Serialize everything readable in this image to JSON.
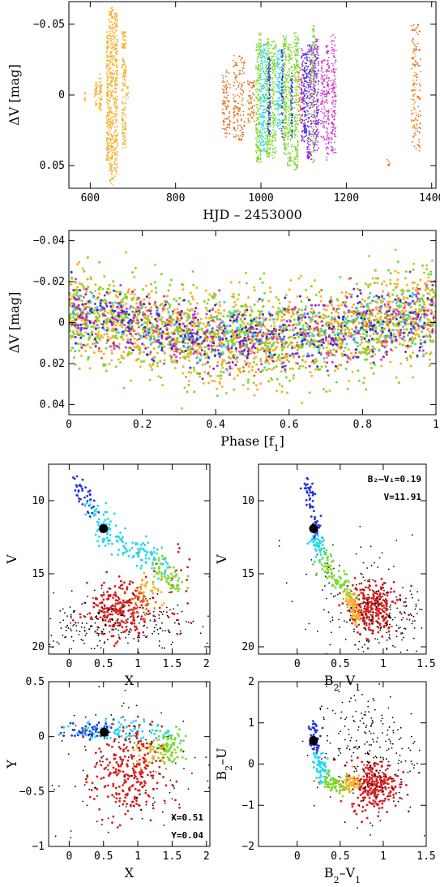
{
  "palette": {
    "orange": "#f4b12a",
    "deep_orange": "#df6b15",
    "green": "#7bd92d",
    "cyan": "#24d7f1",
    "blue": "#2233d8",
    "purple": "#8b28d7",
    "magenta": "#cf36cf",
    "red": "#d81d1d",
    "black": "#000000"
  },
  "chart_data": [
    {
      "type": "scatter",
      "id": "lightcurve",
      "xlabel": "HJD – 2453000",
      "ylabel": "ΔV [mag]",
      "xlim": [
        550,
        1410
      ],
      "ylim": [
        0.066,
        -0.066
      ],
      "xticks": [
        600,
        800,
        1000,
        1200,
        1400
      ],
      "yticks": [
        -0.05,
        0,
        0.05
      ],
      "ytick_labels": [
        "−0.05",
        "0",
        "0.05"
      ],
      "grid": false,
      "segments": [
        {
          "x0": 585,
          "x1": 590,
          "ymin": -0.003,
          "ymax": 0.004,
          "color": "orange",
          "n": 8
        },
        {
          "x0": 610,
          "x1": 617,
          "ymin": -0.009,
          "ymax": 0.009,
          "color": "orange",
          "n": 30
        },
        {
          "x0": 620,
          "x1": 628,
          "ymin": -0.015,
          "ymax": 0.011,
          "color": "orange",
          "n": 50
        },
        {
          "x0": 638,
          "x1": 643,
          "ymin": -0.045,
          "ymax": 0.047,
          "color": "orange",
          "n": 140
        },
        {
          "x0": 644,
          "x1": 654,
          "ymin": -0.062,
          "ymax": 0.064,
          "color": "orange",
          "n": 260
        },
        {
          "x0": 656,
          "x1": 664,
          "ymin": -0.058,
          "ymax": 0.058,
          "color": "orange",
          "n": 220
        },
        {
          "x0": 674,
          "x1": 684,
          "ymin": -0.045,
          "ymax": 0.038,
          "color": "orange",
          "n": 160
        },
        {
          "x0": 685,
          "x1": 690,
          "ymin": -0.006,
          "ymax": 0.003,
          "color": "orange",
          "n": 10
        },
        {
          "x0": 910,
          "x1": 928,
          "ymin": -0.018,
          "ymax": 0.03,
          "color": "deep_orange",
          "n": 90
        },
        {
          "x0": 935,
          "x1": 962,
          "ymin": -0.028,
          "ymax": 0.032,
          "color": "deep_orange",
          "n": 140
        },
        {
          "x0": 968,
          "x1": 985,
          "ymin": -0.01,
          "ymax": 0.02,
          "color": "deep_orange",
          "n": 60
        },
        {
          "x0": 988,
          "x1": 1000,
          "ymin": -0.044,
          "ymax": 0.048,
          "color": "green",
          "n": 220
        },
        {
          "x0": 1000,
          "x1": 1012,
          "ymin": -0.036,
          "ymax": 0.04,
          "color": "cyan",
          "n": 160
        },
        {
          "x0": 1012,
          "x1": 1022,
          "ymin": -0.04,
          "ymax": 0.044,
          "color": "green",
          "n": 200
        },
        {
          "x0": 1016,
          "x1": 1022,
          "ymin": -0.028,
          "ymax": 0.028,
          "color": "blue",
          "n": 90
        },
        {
          "x0": 1025,
          "x1": 1036,
          "ymin": -0.038,
          "ymax": 0.045,
          "color": "green",
          "n": 160
        },
        {
          "x0": 1038,
          "x1": 1046,
          "ymin": -0.033,
          "ymax": 0.024,
          "color": "cyan",
          "n": 110
        },
        {
          "x0": 1048,
          "x1": 1052,
          "ymin": -0.032,
          "ymax": 0.031,
          "color": "blue",
          "n": 70
        },
        {
          "x0": 1052,
          "x1": 1060,
          "ymin": -0.042,
          "ymax": 0.043,
          "color": "green",
          "n": 180
        },
        {
          "x0": 1062,
          "x1": 1074,
          "ymin": -0.036,
          "ymax": 0.05,
          "color": "green",
          "n": 170
        },
        {
          "x0": 1070,
          "x1": 1075,
          "ymin": -0.018,
          "ymax": 0.03,
          "color": "blue",
          "n": 50
        },
        {
          "x0": 1078,
          "x1": 1088,
          "ymin": -0.044,
          "ymax": 0.053,
          "color": "green",
          "n": 200
        },
        {
          "x0": 1088,
          "x1": 1096,
          "ymin": -0.02,
          "ymax": 0.02,
          "color": "deep_orange",
          "n": 50
        },
        {
          "x0": 1094,
          "x1": 1102,
          "ymin": -0.033,
          "ymax": 0.034,
          "color": "purple",
          "n": 100
        },
        {
          "x0": 1102,
          "x1": 1108,
          "ymin": -0.03,
          "ymax": 0.03,
          "color": "blue",
          "n": 80
        },
        {
          "x0": 1108,
          "x1": 1120,
          "ymin": -0.036,
          "ymax": 0.046,
          "color": "purple",
          "n": 170
        },
        {
          "x0": 1122,
          "x1": 1136,
          "ymin": -0.04,
          "ymax": 0.04,
          "color": "purple",
          "n": 200
        },
        {
          "x0": 1118,
          "x1": 1126,
          "ymin": -0.05,
          "ymax": 0.05,
          "color": "green",
          "n": 110
        },
        {
          "x0": 1140,
          "x1": 1150,
          "ymin": -0.026,
          "ymax": 0.032,
          "color": "magenta",
          "n": 80
        },
        {
          "x0": 1152,
          "x1": 1160,
          "ymin": -0.036,
          "ymax": 0.046,
          "color": "magenta",
          "n": 110
        },
        {
          "x0": 1164,
          "x1": 1176,
          "ymin": -0.044,
          "ymax": 0.042,
          "color": "magenta",
          "n": 140
        },
        {
          "x0": 1296,
          "x1": 1302,
          "ymin": 0.044,
          "ymax": 0.05,
          "color": "deep_orange",
          "n": 6
        },
        {
          "x0": 1352,
          "x1": 1374,
          "ymin": -0.05,
          "ymax": 0.04,
          "color": "deep_orange",
          "n": 120
        },
        {
          "x0": 1356,
          "x1": 1366,
          "ymin": -0.04,
          "ymax": 0.03,
          "color": "orange",
          "n": 40
        }
      ]
    },
    {
      "type": "scatter",
      "id": "phase",
      "xlabel": "Phase [f",
      "xlabel_sub": "1",
      "xlabel_end": "]",
      "ylabel": "ΔV [mag]",
      "xlim": [
        0,
        1
      ],
      "ylim": [
        0.045,
        -0.045
      ],
      "xticks": [
        0,
        0.2,
        0.4,
        0.6,
        0.8,
        1
      ],
      "xtick_labels": [
        "0",
        "0.2",
        "0.4",
        "0.6",
        "0.8",
        "1"
      ],
      "yticks": [
        -0.04,
        -0.02,
        0,
        0.02,
        0.04
      ],
      "ytick_labels": [
        "−0.04",
        "−0.02",
        "0",
        "0.02",
        "0.04"
      ],
      "grid": false,
      "model": "mean(phase) = -0.005 + 0.012 * sin(pi * phase)",
      "series": [
        {
          "color": "orange",
          "n": 1400,
          "scatter": 0.016
        },
        {
          "color": "green",
          "n": 900,
          "scatter": 0.016
        },
        {
          "color": "magenta",
          "n": 320,
          "scatter": 0.012
        },
        {
          "color": "purple",
          "n": 260,
          "scatter": 0.011
        },
        {
          "color": "blue",
          "n": 260,
          "scatter": 0.011
        },
        {
          "color": "cyan",
          "n": 180,
          "scatter": 0.011
        },
        {
          "color": "deep_orange",
          "n": 120,
          "scatter": 0.011
        }
      ]
    },
    {
      "type": "scatter",
      "id": "cmd-x",
      "xlabel": "X",
      "ylabel": "V",
      "xlim": [
        -0.3,
        2.05
      ],
      "ylim": [
        20.5,
        7.5
      ],
      "xticks": [
        0,
        0.5,
        1,
        1.5,
        2
      ],
      "xtick_labels": [
        "0",
        "0.5",
        "1",
        "1.5",
        "2"
      ],
      "yticks": [
        10,
        15,
        20
      ],
      "ytick_labels": [
        "10",
        "15",
        "20"
      ],
      "grid": false,
      "star": {
        "x": 0.5,
        "y": 11.91
      },
      "track": [
        {
          "x0": 0.1,
          "x1": 0.35,
          "y0": 8.6,
          "y1": 11.0,
          "color": "blue",
          "n": 40,
          "spread": 0.06
        },
        {
          "x0": 0.25,
          "x1": 0.65,
          "y0": 10.4,
          "y1": 12.2,
          "color": "cyan",
          "n": 40,
          "spread": 0.07
        },
        {
          "x0": 0.45,
          "x1": 0.95,
          "y0": 12.2,
          "y1": 13.4,
          "color": "cyan",
          "n": 50,
          "spread": 0.08
        },
        {
          "x0": 0.9,
          "x1": 1.45,
          "y0": 13.2,
          "y1": 14.6,
          "color": "cyan",
          "n": 60,
          "spread": 0.08
        },
        {
          "x0": 1.3,
          "x1": 1.6,
          "y0": 14.4,
          "y1": 15.8,
          "color": "green",
          "n": 60,
          "spread": 0.08
        },
        {
          "x0": 1.1,
          "x1": 1.35,
          "y0": 15.6,
          "y1": 16.7,
          "color": "orange",
          "n": 30,
          "spread": 0.08
        },
        {
          "x0": 0.95,
          "x1": 1.15,
          "y0": 16.5,
          "y1": 17.6,
          "color": "deep_orange",
          "n": 30,
          "spread": 0.08
        }
      ],
      "clouds": [
        {
          "cx": 0.72,
          "cy": 17.4,
          "sx": 0.22,
          "sy": 0.9,
          "color": "red",
          "n": 230
        },
        {
          "cx": 0.95,
          "cy": 18.2,
          "sx": 0.55,
          "sy": 1.1,
          "color": "black",
          "n": 170
        },
        {
          "cx": 0.15,
          "cy": 18.6,
          "sx": 0.25,
          "sy": 0.7,
          "color": "black",
          "n": 70
        },
        {
          "cx": 1.6,
          "cy": 16.0,
          "sx": 0.3,
          "sy": 2.0,
          "color": "red",
          "n": 25
        }
      ]
    },
    {
      "type": "scatter",
      "id": "cmd-bv",
      "xlabel": "B",
      "xlabel_sub": "2",
      "xlabel_mid": "–V",
      "xlabel_sub2": "1",
      "ylabel": "V",
      "xlim": [
        -0.45,
        1.5
      ],
      "ylim": [
        20.5,
        7.5
      ],
      "xticks": [
        0,
        0.5,
        1,
        1.5
      ],
      "xtick_labels": [
        "0",
        "0.5",
        "1",
        "1.5"
      ],
      "yticks": [
        10,
        15,
        20
      ],
      "ytick_labels": [
        "10",
        "15",
        "20"
      ],
      "grid": false,
      "star": {
        "x": 0.19,
        "y": 11.91
      },
      "annotation_lines": [
        "B₂–V₁=0.19",
        "V=11.91"
      ],
      "track": [
        {
          "x0": 0.12,
          "x1": 0.22,
          "y0": 8.6,
          "y1": 12.4,
          "color": "blue",
          "n": 60,
          "spread": 0.035
        },
        {
          "x0": 0.2,
          "x1": 0.3,
          "y0": 12.4,
          "y1": 14.0,
          "color": "cyan",
          "n": 50,
          "spread": 0.04
        },
        {
          "x0": 0.3,
          "x1": 0.5,
          "y0": 14.0,
          "y1": 15.6,
          "color": "green",
          "n": 60,
          "spread": 0.05
        },
        {
          "x0": 0.5,
          "x1": 0.62,
          "y0": 15.6,
          "y1": 16.6,
          "color": "green",
          "n": 30,
          "spread": 0.04
        },
        {
          "x0": 0.6,
          "x1": 0.7,
          "y0": 16.2,
          "y1": 18.3,
          "color": "orange",
          "n": 70,
          "spread": 0.03
        }
      ],
      "clouds": [
        {
          "cx": 0.88,
          "cy": 17.3,
          "sx": 0.14,
          "sy": 0.85,
          "color": "red",
          "n": 260
        },
        {
          "cx": 0.95,
          "cy": 17.8,
          "sx": 0.35,
          "sy": 1.4,
          "color": "black",
          "n": 210
        },
        {
          "cx": 0.62,
          "cy": 14.5,
          "sx": 0.3,
          "sy": 1.5,
          "color": "black",
          "n": 40
        }
      ]
    },
    {
      "type": "scatter",
      "id": "xy",
      "xlabel": "X",
      "ylabel": "Y",
      "xlim": [
        -0.3,
        2.05
      ],
      "ylim": [
        -1,
        0.5
      ],
      "xticks": [
        0,
        0.5,
        1,
        1.5,
        2
      ],
      "xtick_labels": [
        "0",
        "0.5",
        "1",
        "1.5",
        "2"
      ],
      "yticks": [
        -1,
        -0.5,
        0,
        0.5
      ],
      "ytick_labels": [
        "−1",
        "−0.5",
        "0",
        "0.5"
      ],
      "grid": false,
      "star": {
        "x": 0.51,
        "y": 0.04
      },
      "annotation_lines": [
        "X=0.51",
        "Y=0.04"
      ],
      "clouds": [
        {
          "cx": 0.3,
          "cy": 0.06,
          "sx": 0.18,
          "sy": 0.04,
          "color": "blue",
          "n": 60
        },
        {
          "cx": 0.8,
          "cy": 0.05,
          "sx": 0.35,
          "sy": 0.05,
          "color": "cyan",
          "n": 110
        },
        {
          "cx": 1.45,
          "cy": -0.1,
          "sx": 0.13,
          "sy": 0.08,
          "color": "green",
          "n": 90
        },
        {
          "cx": 1.2,
          "cy": -0.16,
          "sx": 0.12,
          "sy": 0.07,
          "color": "orange",
          "n": 40
        },
        {
          "cx": 0.85,
          "cy": -0.35,
          "sx": 0.25,
          "sy": 0.22,
          "color": "red",
          "n": 260
        },
        {
          "cx": 0.8,
          "cy": -0.3,
          "sx": 0.7,
          "sy": 0.45,
          "color": "black",
          "n": 120
        }
      ]
    },
    {
      "type": "scatter",
      "id": "bu-bv",
      "xlabel": "B",
      "xlabel_sub": "2",
      "xlabel_mid": "–V",
      "xlabel_sub2": "1",
      "ylabel": "B",
      "ylabel_sub": "2",
      "ylabel_end": "–U",
      "xlim": [
        -0.45,
        1.5
      ],
      "ylim": [
        -2,
        2
      ],
      "xticks": [
        0,
        0.5,
        1,
        1.5
      ],
      "xtick_labels": [
        "0",
        "0.5",
        "1",
        "1.5"
      ],
      "yticks": [
        -2,
        -1,
        0,
        1,
        2
      ],
      "ytick_labels": [
        "−2",
        "−1",
        "0",
        "1",
        "2"
      ],
      "grid": false,
      "star": {
        "x": 0.19,
        "y": 0.57
      },
      "track": [
        {
          "x0": 0.18,
          "x1": 0.22,
          "y0": 1.0,
          "y1": 0.3,
          "color": "blue",
          "n": 50,
          "spread": 0.03
        },
        {
          "x0": 0.22,
          "x1": 0.32,
          "y0": 0.3,
          "y1": -0.4,
          "color": "cyan",
          "n": 60,
          "spread": 0.04
        },
        {
          "x0": 0.32,
          "x1": 0.58,
          "y0": -0.4,
          "y1": -0.55,
          "color": "green",
          "n": 70,
          "spread": 0.05
        },
        {
          "x0": 0.58,
          "x1": 0.72,
          "y0": -0.55,
          "y1": -0.35,
          "color": "orange",
          "n": 60,
          "spread": 0.05
        }
      ],
      "clouds": [
        {
          "cx": 0.9,
          "cy": -0.5,
          "sx": 0.14,
          "sy": 0.3,
          "color": "red",
          "n": 250
        },
        {
          "cx": 0.8,
          "cy": 0.3,
          "sx": 0.3,
          "sy": 0.8,
          "color": "black",
          "n": 260
        }
      ]
    }
  ]
}
